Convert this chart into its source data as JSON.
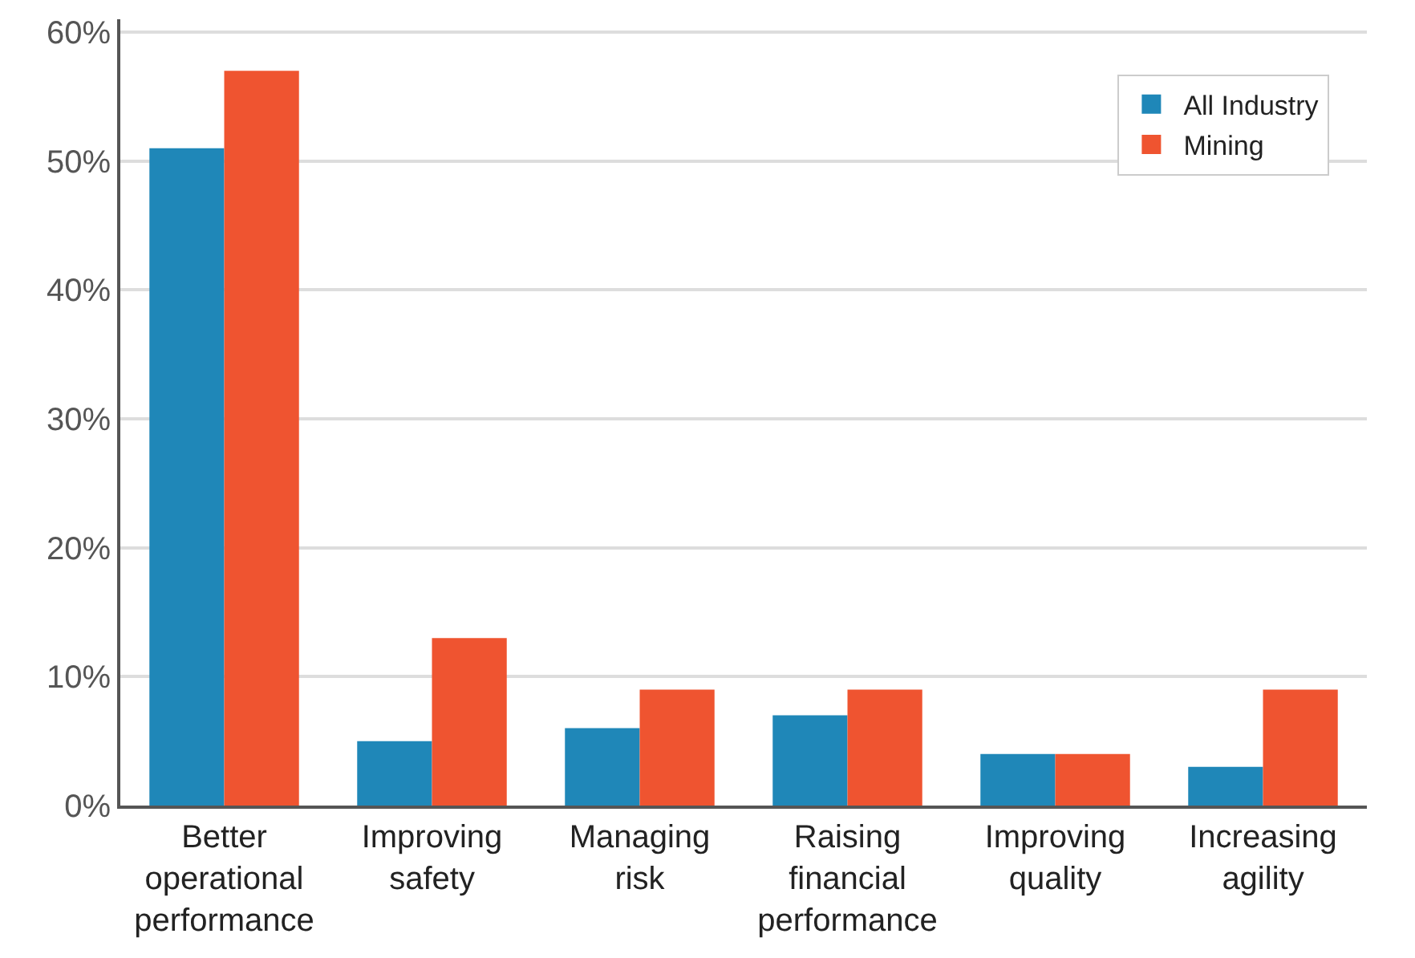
{
  "chart_data": {
    "type": "bar",
    "categories": [
      "Better\noperational\nperformance",
      "Improving\nsafety",
      "Managing\nrisk",
      "Raising\nfinancial\nperformance",
      "Improving\nquality",
      "Increasing\nagility"
    ],
    "series": [
      {
        "name": "All Industry",
        "color": "#1f87b8",
        "values": [
          51,
          5,
          6,
          7,
          4,
          3
        ]
      },
      {
        "name": "Mining",
        "color": "#ef5430",
        "values": [
          57,
          13,
          9,
          9,
          4,
          9
        ]
      }
    ],
    "ylim": [
      0,
      61
    ],
    "yticks": [
      {
        "value": 0,
        "label": "0%"
      },
      {
        "value": 10,
        "label": "10%"
      },
      {
        "value": 20,
        "label": "20%"
      },
      {
        "value": 30,
        "label": "30%"
      },
      {
        "value": 40,
        "label": "40%"
      },
      {
        "value": 50,
        "label": "50%"
      },
      {
        "value": 60,
        "label": "60%"
      }
    ],
    "grid": "y",
    "legend": "top right"
  }
}
